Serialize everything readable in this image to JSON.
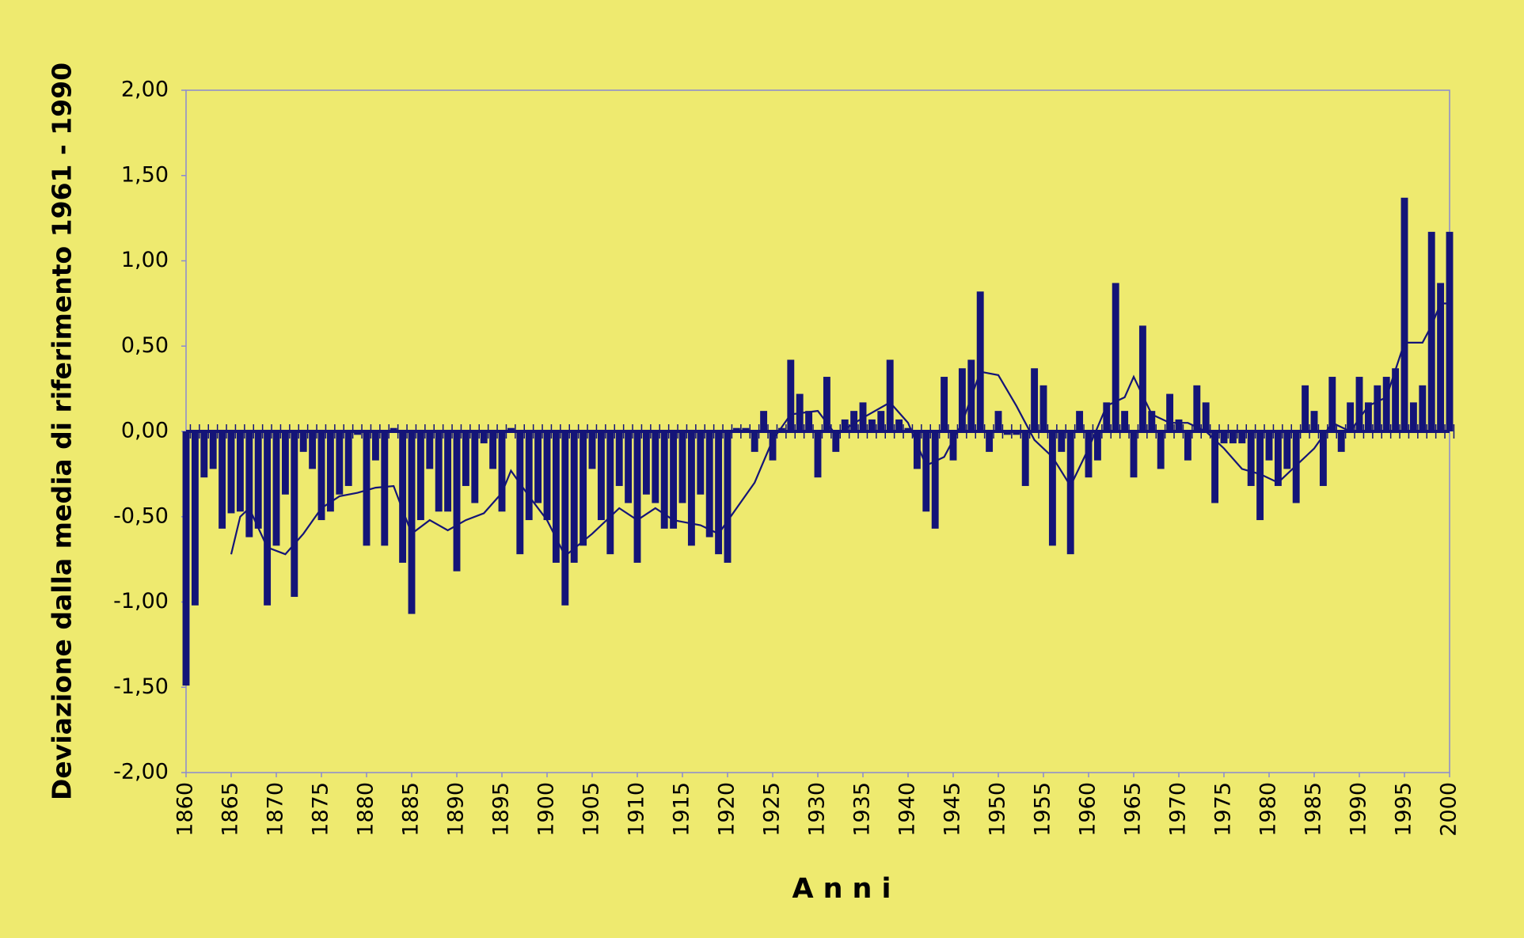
{
  "chart_data": {
    "type": "bar",
    "y_label": "Deviazione dalla media di riferimento 1961 - 1990",
    "x_label": "Anni",
    "xlim": [
      1860,
      2000
    ],
    "xticks": [
      1860,
      1865,
      1870,
      1875,
      1880,
      1885,
      1890,
      1895,
      1900,
      1905,
      1910,
      1915,
      1920,
      1925,
      1930,
      1935,
      1940,
      1945,
      1950,
      1955,
      1960,
      1965,
      1970,
      1975,
      1980,
      1985,
      1990,
      1995,
      2000
    ],
    "ylim": [
      -2,
      2
    ],
    "yticks": [
      {
        "value": -2,
        "label": "-2,00"
      },
      {
        "value": -1.5,
        "label": "-1,50"
      },
      {
        "value": -1,
        "label": "-1,00"
      },
      {
        "value": -0.5,
        "label": "-0,50"
      },
      {
        "value": 0,
        "label": "0,00"
      },
      {
        "value": 0.5,
        "label": "0,50"
      },
      {
        "value": 1,
        "label": "1,00"
      },
      {
        "value": 1.5,
        "label": "1,50"
      },
      {
        "value": 2,
        "label": "2,00"
      }
    ],
    "bars": {
      "color": "#141478",
      "x": [
        1860,
        1861,
        1862,
        1863,
        1864,
        1865,
        1866,
        1867,
        1868,
        1869,
        1870,
        1871,
        1872,
        1873,
        1874,
        1875,
        1876,
        1877,
        1878,
        1879,
        1880,
        1881,
        1882,
        1883,
        1884,
        1885,
        1886,
        1887,
        1888,
        1889,
        1890,
        1891,
        1892,
        1893,
        1894,
        1895,
        1896,
        1897,
        1898,
        1899,
        1900,
        1901,
        1902,
        1903,
        1904,
        1905,
        1906,
        1907,
        1908,
        1909,
        1910,
        1911,
        1912,
        1913,
        1914,
        1915,
        1916,
        1917,
        1918,
        1919,
        1920,
        1921,
        1922,
        1923,
        1924,
        1925,
        1926,
        1927,
        1928,
        1929,
        1930,
        1931,
        1932,
        1933,
        1934,
        1935,
        1936,
        1937,
        1938,
        1939,
        1940,
        1941,
        1942,
        1943,
        1944,
        1945,
        1946,
        1947,
        1948,
        1949,
        1950,
        1951,
        1952,
        1953,
        1954,
        1955,
        1956,
        1957,
        1958,
        1959,
        1960,
        1961,
        1962,
        1963,
        1964,
        1965,
        1966,
        1967,
        1968,
        1969,
        1970,
        1971,
        1972,
        1973,
        1974,
        1975,
        1976,
        1977,
        1978,
        1979,
        1980,
        1981,
        1982,
        1983,
        1984,
        1985,
        1986,
        1987,
        1988,
        1989,
        1990,
        1991,
        1992,
        1993,
        1994,
        1995,
        1996,
        1997,
        1998,
        1999,
        2000
      ],
      "values": [
        -1.49,
        -1.02,
        -0.27,
        -0.22,
        -0.57,
        -0.48,
        -0.47,
        -0.62,
        -0.57,
        -1.02,
        -0.67,
        -0.37,
        -0.97,
        -0.12,
        -0.22,
        -0.52,
        -0.47,
        -0.37,
        -0.32,
        -0.02,
        -0.67,
        -0.17,
        -0.67,
        0.02,
        -0.77,
        -1.07,
        -0.52,
        -0.22,
        -0.47,
        -0.47,
        -0.82,
        -0.32,
        -0.42,
        -0.07,
        -0.22,
        -0.47,
        0.02,
        -0.72,
        -0.52,
        -0.42,
        -0.52,
        -0.77,
        -1.02,
        -0.77,
        -0.67,
        -0.22,
        -0.52,
        -0.72,
        -0.32,
        -0.42,
        -0.77,
        -0.37,
        -0.42,
        -0.57,
        -0.57,
        -0.42,
        -0.67,
        -0.37,
        -0.62,
        -0.72,
        -0.77,
        0.02,
        0.02,
        -0.12,
        0.12,
        -0.17,
        0.02,
        0.42,
        0.22,
        0.12,
        -0.27,
        0.32,
        -0.12,
        0.07,
        0.12,
        0.17,
        0.07,
        0.12,
        0.42,
        0.07,
        0.02,
        -0.22,
        -0.47,
        -0.57,
        0.32,
        -0.17,
        0.37,
        0.42,
        0.82,
        -0.12,
        0.12,
        -0.02,
        -0.02,
        -0.32,
        0.37,
        0.27,
        -0.67,
        -0.12,
        -0.72,
        0.12,
        -0.27,
        -0.17,
        0.17,
        0.87,
        0.12,
        -0.27,
        0.62,
        0.12,
        -0.22,
        0.22,
        0.07,
        -0.17,
        0.27,
        0.17,
        -0.42,
        -0.07,
        -0.07,
        -0.07,
        -0.32,
        -0.52,
        -0.17,
        -0.32,
        -0.22,
        -0.42,
        0.27,
        0.12,
        -0.32,
        0.32,
        -0.12,
        0.17,
        0.32,
        0.17,
        0.27,
        0.32,
        0.37,
        1.37,
        0.17,
        0.27,
        1.17,
        0.87,
        1.17
      ]
    },
    "line": {
      "color": "#141478",
      "x": [
        1865,
        1866,
        1867,
        1869,
        1871,
        1873,
        1875,
        1877,
        1879,
        1881,
        1883,
        1885,
        1887,
        1889,
        1891,
        1893,
        1895,
        1896,
        1898,
        1900,
        1902,
        1905,
        1908,
        1910,
        1912,
        1914,
        1917,
        1919,
        1921,
        1923,
        1925,
        1927,
        1930,
        1932,
        1935,
        1938,
        1940,
        1942,
        1944,
        1946,
        1948,
        1950,
        1952,
        1954,
        1956,
        1958,
        1960,
        1962,
        1964,
        1965,
        1967,
        1969,
        1971,
        1973,
        1975,
        1977,
        1979,
        1981,
        1983,
        1985,
        1987,
        1989,
        1991,
        1993,
        1995,
        1997,
        1998,
        1999,
        2000
      ],
      "values": [
        -0.72,
        -0.5,
        -0.45,
        -0.68,
        -0.72,
        -0.6,
        -0.45,
        -0.38,
        -0.36,
        -0.33,
        -0.32,
        -0.6,
        -0.52,
        -0.58,
        -0.52,
        -0.48,
        -0.36,
        -0.23,
        -0.38,
        -0.52,
        -0.73,
        -0.6,
        -0.45,
        -0.52,
        -0.45,
        -0.52,
        -0.55,
        -0.6,
        -0.45,
        -0.3,
        -0.05,
        0.1,
        0.12,
        -0.02,
        0.08,
        0.17,
        0.05,
        -0.2,
        -0.15,
        0.05,
        0.35,
        0.33,
        0.15,
        -0.05,
        -0.15,
        -0.32,
        -0.1,
        0.15,
        0.2,
        0.32,
        0.1,
        0.05,
        0.05,
        0.0,
        -0.1,
        -0.22,
        -0.25,
        -0.3,
        -0.2,
        -0.1,
        0.05,
        0.0,
        0.15,
        0.2,
        0.52,
        0.52,
        0.62,
        0.75,
        0.75
      ]
    }
  }
}
